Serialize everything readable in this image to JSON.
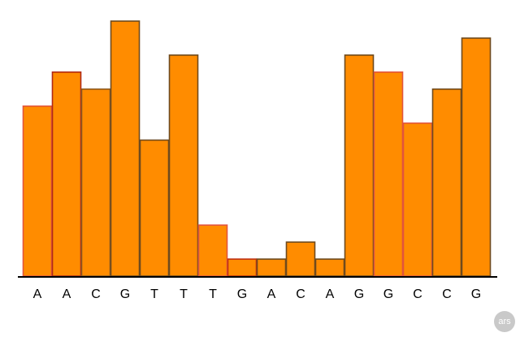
{
  "chart_data": {
    "type": "bar",
    "title": "",
    "xlabel": "",
    "ylabel": "",
    "categories": [
      "A",
      "A",
      "C",
      "G",
      "T",
      "T",
      "T",
      "G",
      "A",
      "C",
      "A",
      "G",
      "G",
      "C",
      "C",
      "G"
    ],
    "values": [
      10,
      12,
      11,
      15,
      8,
      13,
      3,
      1,
      1,
      2,
      1,
      13,
      12,
      9,
      11,
      14
    ],
    "ylim": [
      0,
      15
    ],
    "grid": false,
    "legend": "none",
    "colors": {
      "bar_fill": "#ff8c00",
      "bar_strokes": [
        "#e2553e",
        "#b02a18",
        "#8c5a20",
        "#6e4a1e",
        "#6e4a1e",
        "#6e4a1e",
        "#e2553e",
        "#c03010",
        "#6e4a1e",
        "#6e4a1e",
        "#6e4a1e",
        "#6e4a1e",
        "#e2553e",
        "#e2553e",
        "#6e4a1e",
        "#6e4a1e"
      ],
      "axis": "#000000",
      "label": "#000000"
    }
  },
  "watermark": {
    "text": "ars"
  }
}
